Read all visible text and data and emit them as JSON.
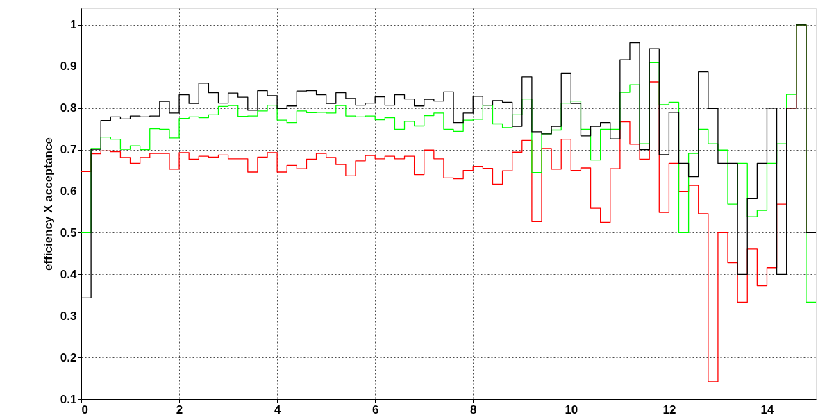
{
  "chart_data": {
    "type": "histogram",
    "ylabel": "efficiency X acceptance",
    "bins": [
      0,
      0.2,
      0.4,
      0.6,
      0.8,
      1,
      1.2,
      1.4,
      1.6,
      1.8,
      2,
      2.2,
      2.4,
      2.6,
      2.8,
      3,
      3.2,
      3.4,
      3.6,
      3.8,
      4,
      4.2,
      4.4,
      4.6,
      4.8,
      5,
      5.2,
      5.4,
      5.6,
      5.8,
      6,
      6.2,
      6.4,
      6.6,
      6.8,
      7,
      7.2,
      7.4,
      7.6,
      7.8,
      8,
      8.2,
      8.4,
      8.6,
      8.8,
      9,
      9.2,
      9.4,
      9.6,
      9.8,
      10,
      10.2,
      10.4,
      10.6,
      10.8,
      11,
      11.2,
      11.4,
      11.6,
      11.8,
      12,
      12.2,
      12.4,
      12.6,
      12.8,
      13,
      13.2,
      13.4,
      13.6,
      13.8,
      14,
      14.2,
      14.4,
      14.6,
      14.8,
      15
    ],
    "series": [
      {
        "color": "#ff0000",
        "values": [
          0.647,
          0.69,
          0.697,
          0.695,
          0.681,
          0.667,
          0.681,
          0.691,
          0.691,
          0.653,
          0.693,
          0.677,
          0.684,
          0.682,
          0.687,
          0.678,
          0.678,
          0.646,
          0.682,
          0.693,
          0.646,
          0.662,
          0.654,
          0.677,
          0.691,
          0.681,
          0.664,
          0.637,
          0.673,
          0.686,
          0.678,
          0.684,
          0.678,
          0.684,
          0.64,
          0.699,
          0.678,
          0.632,
          0.63,
          0.65,
          0.66,
          0.655,
          0.617,
          0.649,
          0.694,
          0.722,
          0.527,
          0.703,
          0.653,
          0.725,
          0.65,
          0.656,
          0.559,
          0.525,
          0.654,
          0.767,
          0.713,
          0.677,
          0.863,
          0.549,
          0.667,
          0.6,
          0.614,
          0.546,
          0.142,
          0.5,
          0.428,
          0.333,
          0.461,
          0.373,
          0.416,
          0.569,
          0.8,
          1,
          0.5
        ]
      },
      {
        "color": "#00ff00",
        "values": [
          0.5,
          0.703,
          0.73,
          0.725,
          0.701,
          0.709,
          0.7,
          0.75,
          0.749,
          0.728,
          0.775,
          0.779,
          0.777,
          0.784,
          0.804,
          0.806,
          0.78,
          0.781,
          0.793,
          0.807,
          0.771,
          0.765,
          0.793,
          0.789,
          0.79,
          0.788,
          0.806,
          0.781,
          0.779,
          0.781,
          0.772,
          0.777,
          0.749,
          0.768,
          0.757,
          0.782,
          0.788,
          0.749,
          0.744,
          0.771,
          0.773,
          0.807,
          0.762,
          0.753,
          0.784,
          0.822,
          0.645,
          0.738,
          0.747,
          0.812,
          0.817,
          0.749,
          0.675,
          0.749,
          0.749,
          0.838,
          0.856,
          0.714,
          0.909,
          0.808,
          0.814,
          0.5,
          0.691,
          0.749,
          0.714,
          0.699,
          0.569,
          0.667,
          0.539,
          0.554,
          0.667,
          0.714,
          0.833,
          1,
          0.333
        ]
      },
      {
        "color": "#000000",
        "values": [
          0.343,
          0.701,
          0.77,
          0.779,
          0.774,
          0.781,
          0.779,
          0.781,
          0.816,
          0.788,
          0.832,
          0.811,
          0.86,
          0.837,
          0.812,
          0.836,
          0.826,
          0.795,
          0.842,
          0.83,
          0.799,
          0.805,
          0.841,
          0.842,
          0.832,
          0.811,
          0.837,
          0.823,
          0.807,
          0.812,
          0.827,
          0.807,
          0.832,
          0.822,
          0.805,
          0.821,
          0.817,
          0.839,
          0.765,
          0.788,
          0.828,
          0.807,
          0.818,
          0.814,
          0.756,
          0.875,
          0.743,
          0.738,
          0.756,
          0.884,
          0.811,
          0.733,
          0.756,
          0.765,
          0.726,
          0.916,
          0.957,
          0.7,
          0.943,
          0.688,
          0.79,
          0.667,
          0.635,
          0.887,
          0.799,
          0.667,
          0.667,
          0.4,
          0.582,
          0.667,
          0.8,
          0.4,
          0.8,
          1,
          0.5
        ]
      }
    ],
    "xlim": [
      0,
      15
    ],
    "xticks": [
      0,
      2,
      4,
      6,
      8,
      10,
      12,
      14
    ],
    "ylim": [
      0.1,
      1.04
    ],
    "yticks": [
      0.1,
      0.2,
      0.3,
      0.4,
      0.5,
      0.6,
      0.7,
      0.8,
      0.9,
      1
    ],
    "grid": true,
    "line_style": "solid"
  }
}
